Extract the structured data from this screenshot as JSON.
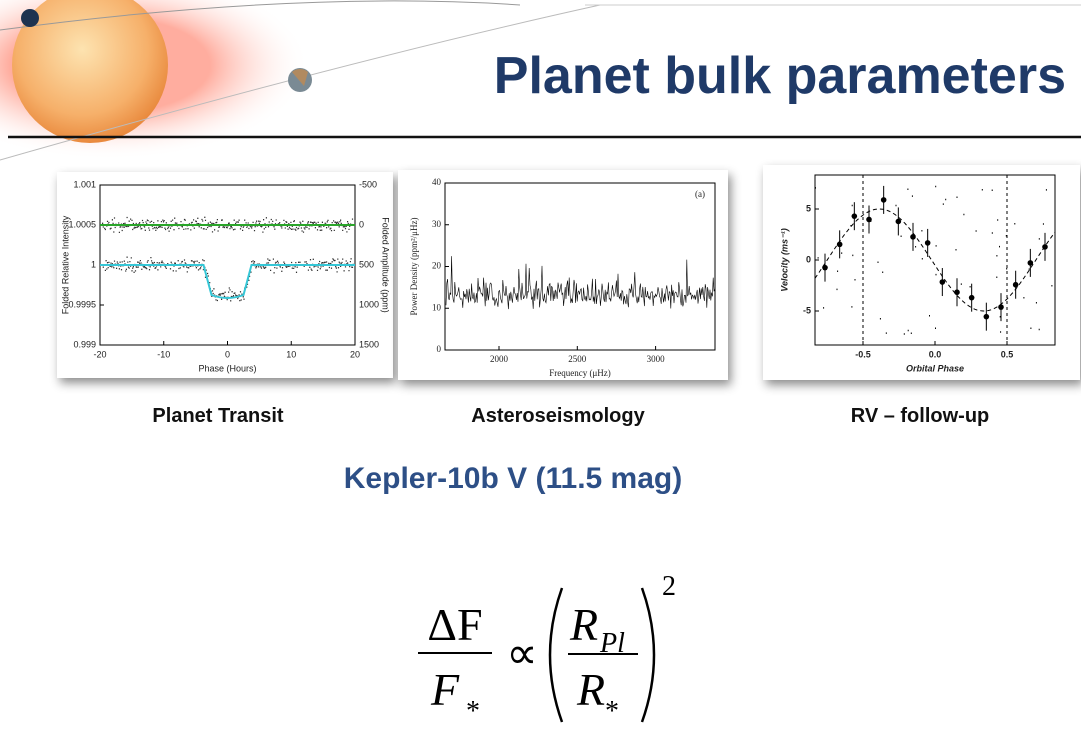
{
  "title": "Planet bulk parameters",
  "panels": [
    {
      "caption": "Planet Transit",
      "xlabel": "Phase (Hours)",
      "ylabel": "Folded Relative Intensity",
      "y2label": "Folded Amplitude (ppm)",
      "xticks": [
        "-20",
        "-10",
        "0",
        "10",
        "20"
      ],
      "yticks": [
        "1.001",
        "1.0005",
        "1",
        "0.9995",
        "0.999"
      ],
      "y2ticks": [
        "-500",
        "0",
        "500",
        "1000",
        "1500"
      ]
    },
    {
      "caption": "Asteroseismology",
      "xlabel": "Frequency (μHz)",
      "ylabel": "Power Density (ppm²/μHz)",
      "annotation": "(a)",
      "xticks": [
        "2000",
        "2500",
        "3000"
      ],
      "yticks": [
        "40",
        "30",
        "20",
        "10",
        "0"
      ]
    },
    {
      "caption": "RV –  follow-up",
      "xlabel": "Orbital Phase",
      "ylabel": "Velocity (ms⁻¹)",
      "xticks": [
        "-0.5",
        "0.0",
        "0.5"
      ],
      "yticks": [
        "5",
        "0",
        "-5"
      ]
    }
  ],
  "subtitle": "Kepler-10b V (11.5 mag)",
  "formula": {
    "numerator": "ΔF",
    "denominator": "F",
    "denominator_sub": "*",
    "relation": "∝",
    "inner_numerator": "R",
    "inner_numerator_sub": "Pl",
    "inner_denominator": "R",
    "inner_denominator_sub": "*",
    "exponent": "2"
  }
}
